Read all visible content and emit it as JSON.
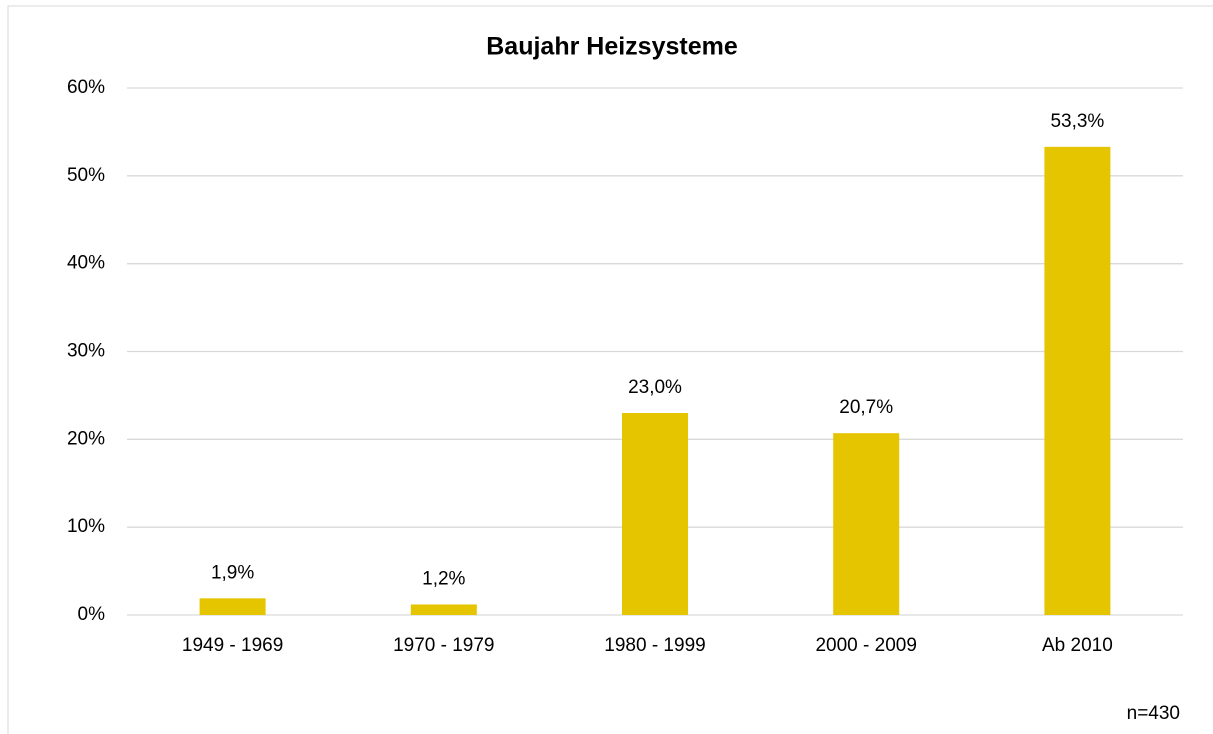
{
  "chart_data": {
    "type": "bar",
    "title": "Baujahr Heizsysteme",
    "categories": [
      "1949 - 1969",
      "1970 - 1979",
      "1980 - 1999",
      "2000 - 2009",
      "Ab 2010"
    ],
    "values": [
      1.9,
      1.2,
      23.0,
      20.7,
      53.3
    ],
    "value_labels": [
      "1,9%",
      "1,2%",
      "23,0%",
      "20,7%",
      "53,3%"
    ],
    "color": "#e5c400",
    "ylim": [
      0,
      60
    ],
    "yticks": [
      {
        "value": 0,
        "label": "0%"
      },
      {
        "value": 10,
        "label": "10%"
      },
      {
        "value": 20,
        "label": "20%"
      },
      {
        "value": 30,
        "label": "30%"
      },
      {
        "value": 40,
        "label": "40%"
      },
      {
        "value": 50,
        "label": "50%"
      },
      {
        "value": 60,
        "label": "60%"
      }
    ],
    "grid": true,
    "annotation": "n=430"
  }
}
